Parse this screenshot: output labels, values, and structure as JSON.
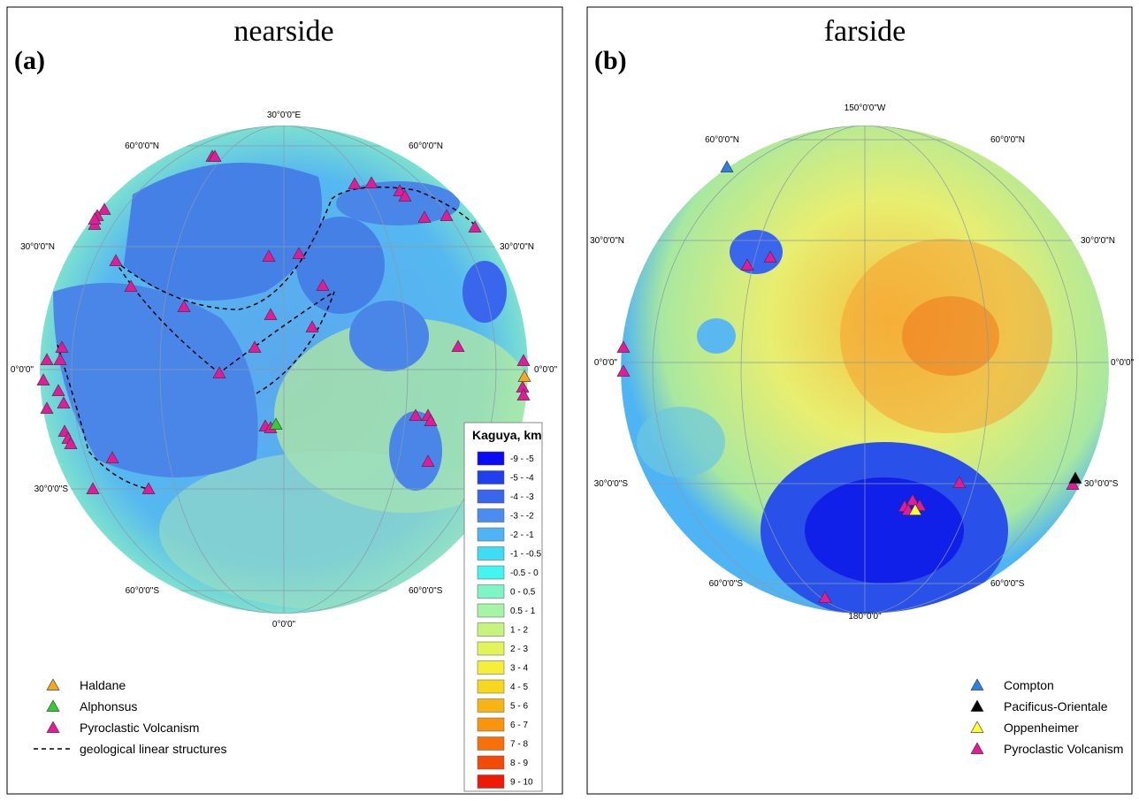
{
  "panels": [
    {
      "label": "(a)",
      "title": "nearside",
      "graticule_labels": [
        "30°0'0\"E",
        "60°0'0\"N",
        "60°0'0\"N",
        "30°0'0\"N",
        "30°0'0\"N",
        "0°0'0\"",
        "0°0'0\"",
        "30°0'0\"S",
        "60°0'0\"S",
        "60°0'0\"S",
        "0°0'0\""
      ],
      "legend": [
        {
          "label": "Haldane",
          "color": "#f5a623",
          "marker": "triangle"
        },
        {
          "label": "Alphonsus",
          "color": "#33cc33",
          "marker": "triangle"
        },
        {
          "label": "Pyroclastic Volcanism",
          "color": "#e6199b",
          "marker": "triangle"
        },
        {
          "label": "geological linear structures",
          "color": "#000000",
          "marker": "dash"
        }
      ],
      "scale": {
        "title": "Kaguya, km",
        "items": [
          {
            "label": "-9 - -5",
            "color": "#0a0af5"
          },
          {
            "label": "-5 - -4",
            "color": "#2040f0"
          },
          {
            "label": "-4 - -3",
            "color": "#3a66ee"
          },
          {
            "label": "-3 - -2",
            "color": "#4a8cf0"
          },
          {
            "label": "-2 - -1",
            "color": "#4fb4f4"
          },
          {
            "label": "-1 - -0.5",
            "color": "#3fdcf6"
          },
          {
            "label": "-0.5 - 0",
            "color": "#44f4ee"
          },
          {
            "label": "0 - 0.5",
            "color": "#7ff4c4"
          },
          {
            "label": "0.5 - 1",
            "color": "#a6f4a6"
          },
          {
            "label": "1 - 2",
            "color": "#c6f47e"
          },
          {
            "label": "2 - 3",
            "color": "#e2f45a"
          },
          {
            "label": "3 - 4",
            "color": "#f6ee3a"
          },
          {
            "label": "4 - 5",
            "color": "#f8d81e"
          },
          {
            "label": "5 - 6",
            "color": "#f8b414"
          },
          {
            "label": "6 - 7",
            "color": "#f8940e"
          },
          {
            "label": "7 - 8",
            "color": "#f8700a"
          },
          {
            "label": "8 - 9",
            "color": "#f44a08"
          },
          {
            "label": "9 - 10",
            "color": "#ee1a06"
          }
        ]
      }
    },
    {
      "label": "(b)",
      "title": "farside",
      "graticule_labels": [
        "150°0'0\"W",
        "60°0'0\"N",
        "60°0'0\"N",
        "30°0'0\"N",
        "30°0'0\"N",
        "0°0'0\"",
        "0°0'0\"",
        "30°0'0\"S",
        "30°0'0\"S",
        "60°0'0\"S",
        "60°0'0\"S",
        "180°0'0\""
      ],
      "legend": [
        {
          "label": "Compton",
          "color": "#2d7fe0",
          "marker": "triangle"
        },
        {
          "label": "Pacificus-Orientale",
          "color": "#000000",
          "marker": "triangle"
        },
        {
          "label": "Oppenheimer",
          "color": "#ffff33",
          "marker": "triangle"
        },
        {
          "label": "Pyroclastic Volcanism",
          "color": "#e6199b",
          "marker": "triangle"
        }
      ]
    }
  ]
}
